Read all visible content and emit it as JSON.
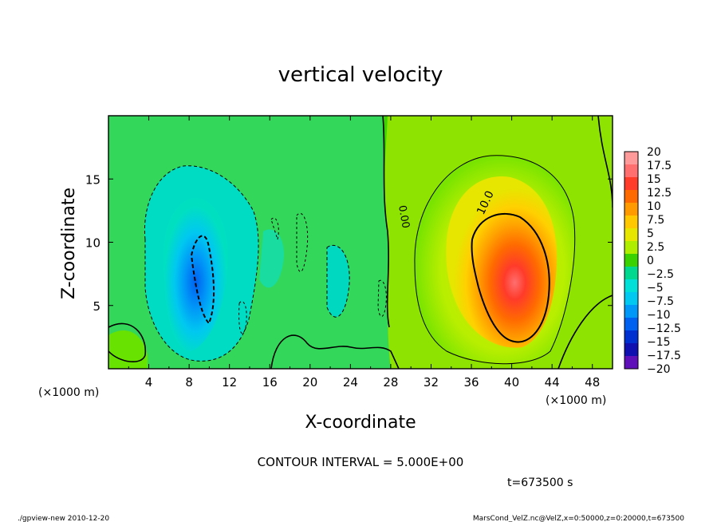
{
  "chart_data": {
    "type": "heatmap",
    "title": "vertical velocity",
    "xlabel": "X-coordinate",
    "ylabel": "Z-coordinate",
    "x_unit": "(×1000 m)",
    "y_unit": "(×1000 m)",
    "xlim": [
      0,
      50
    ],
    "ylim": [
      0,
      20
    ],
    "x_ticks": [
      "4",
      "8",
      "12",
      "16",
      "20",
      "24",
      "28",
      "32",
      "36",
      "40",
      "44",
      "48"
    ],
    "y_ticks": [
      "5",
      "10",
      "15"
    ],
    "colorbar": {
      "labels": [
        "20",
        "17.5",
        "15",
        "12.5",
        "10",
        "7.5",
        "5",
        "2.5",
        "0",
        "-2.5",
        "-5",
        "-7.5",
        "-10",
        "-12.5",
        "-15",
        "-17.5",
        "-20"
      ],
      "colors": [
        "#ff9a9a",
        "#ff6f6f",
        "#ff3b2a",
        "#ff6a00",
        "#ff9a00",
        "#ffc800",
        "#e6e600",
        "#b0ee00",
        "#3ad200",
        "#00d890",
        "#00e0d8",
        "#00c8f0",
        "#0098f8",
        "#0060f0",
        "#0030d0",
        "#1010b0",
        "#6010b8"
      ]
    },
    "features": [
      {
        "kind": "downdraft",
        "x_center": 9.5,
        "z_center": 8,
        "min_value": -12.5
      },
      {
        "kind": "updraft",
        "x_center": 41,
        "z_center": 7,
        "max_value": 17.5
      }
    ],
    "contour_labels": [
      "0.00",
      "10.0"
    ],
    "contour_interval": "CONTOUR INTERVAL = 5.000E+00",
    "time": "t=673500 s"
  },
  "footer": {
    "left": "./gpview-new  2010-12-20",
    "right": "MarsCond_VelZ.nc@VelZ,x=0:50000,z=0:20000,t=673500"
  }
}
